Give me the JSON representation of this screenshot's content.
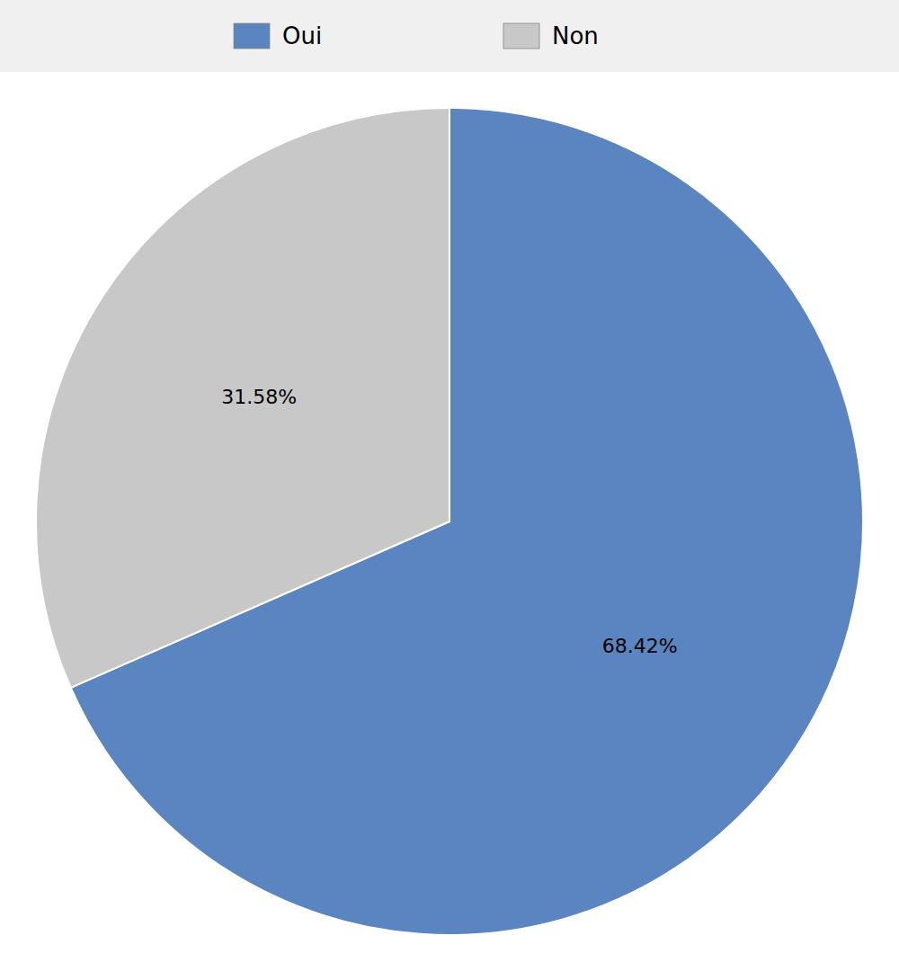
{
  "chart_data": {
    "type": "pie",
    "categories": [
      "Oui",
      "Non"
    ],
    "values": [
      68.42,
      31.58
    ],
    "value_labels": [
      "68.42%",
      "31.58%"
    ],
    "colors": [
      "#5b85c0",
      "#c8c8c8"
    ],
    "data_labels": true,
    "legend": "top"
  }
}
